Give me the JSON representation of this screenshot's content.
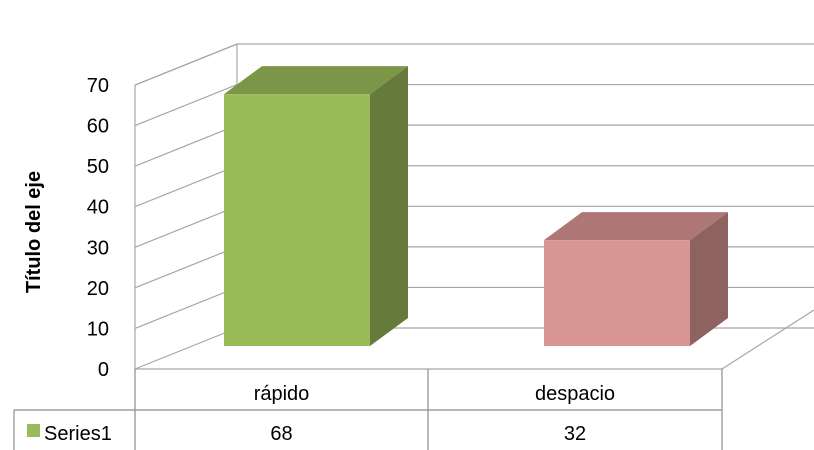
{
  "chart_data": {
    "type": "bar",
    "style": "3d-clustered-column-with-data-table",
    "categories": [
      "rápido",
      "despacio"
    ],
    "series": [
      {
        "name": "Series1",
        "values": [
          68,
          32
        ],
        "point_colors": [
          "#9BBB59",
          "#D99594"
        ],
        "legend_color": "#9BBB59"
      }
    ],
    "ylabel": "Título del eje",
    "ylim": [
      0,
      70
    ],
    "yticks": [
      0,
      10,
      20,
      30,
      40,
      50,
      60,
      70
    ],
    "grid": true,
    "legend": "data-table"
  }
}
